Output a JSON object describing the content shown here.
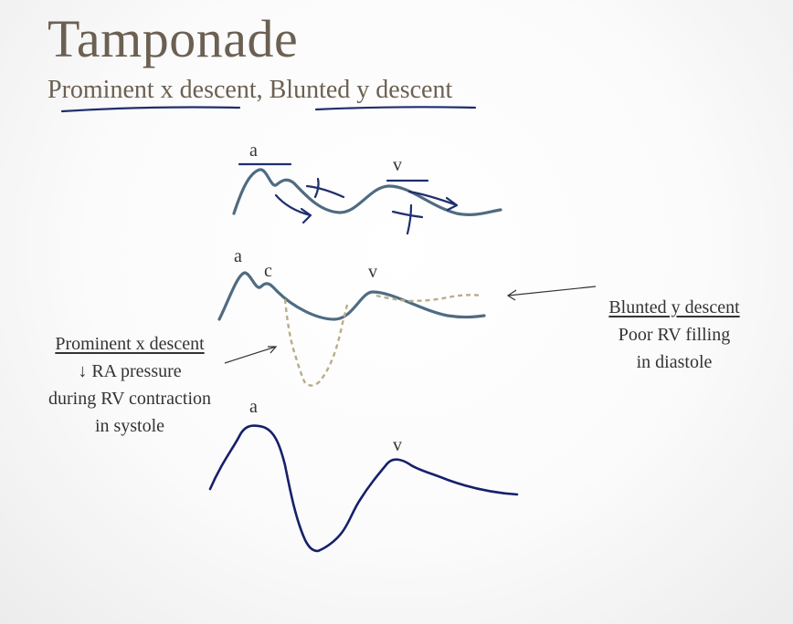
{
  "slide": {
    "title": "Tamponade",
    "subtitle": "Prominent x descent, Blunted y descent"
  },
  "diagram1": {
    "label_a": "a",
    "label_v": "v"
  },
  "diagram2": {
    "label_a": "a",
    "label_c": "c",
    "label_v": "v"
  },
  "diagram3": {
    "label_a": "a",
    "label_v": "v"
  },
  "left_note": {
    "heading": "Prominent x descent",
    "line1": "↓ RA pressure",
    "line2": "during RV contraction",
    "line3": "in systole"
  },
  "right_note": {
    "heading": "Blunted y descent",
    "line1": "Poor RV filling",
    "line2": "in diastole"
  },
  "colors": {
    "title": "#6b6052",
    "waveform": "#4f6b82",
    "ink": "#1f2e6e",
    "dashed": "#b8ad8a"
  }
}
